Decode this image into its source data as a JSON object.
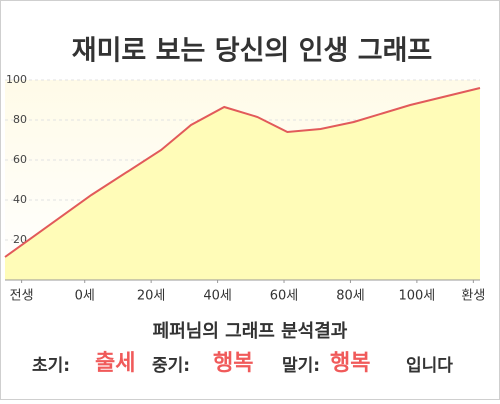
{
  "chart_data": {
    "type": "area",
    "title": "재미로 보는 당신의 인생 그래프",
    "x": [
      -24,
      2,
      23,
      32,
      42,
      52,
      61,
      71,
      81,
      98,
      119
    ],
    "values": [
      11.5,
      42.5,
      65,
      77.5,
      86.5,
      81.5,
      74,
      75.5,
      79,
      87.5,
      96
    ],
    "color": "#e25a5a",
    "fill_color": "#fffcb8",
    "xlim": [
      -24,
      119
    ],
    "xticks": [
      {
        "value": -19,
        "label": "전생"
      },
      {
        "value": 0,
        "label": "0세"
      },
      {
        "value": 20,
        "label": "20세"
      },
      {
        "value": 40,
        "label": "40세"
      },
      {
        "value": 60,
        "label": "60세"
      },
      {
        "value": 80,
        "label": "80세"
      },
      {
        "value": 100,
        "label": "100세"
      },
      {
        "value": 117,
        "label": "환생"
      }
    ],
    "ylim": [
      0,
      100
    ],
    "yticks": [
      20,
      40,
      60,
      80,
      100
    ],
    "grid": true
  },
  "result": {
    "heading": "페퍼님의 그래프 분석결과",
    "early_label": "초기:",
    "early_value": "출세",
    "middle_label": "중기:",
    "middle_value": "행복",
    "late_label": "말기:",
    "late_value": "행복",
    "ending": "입니다"
  }
}
